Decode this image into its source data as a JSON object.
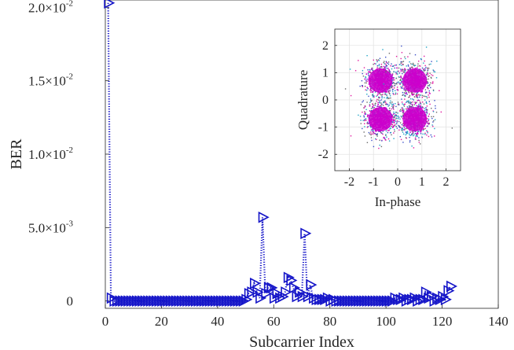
{
  "chart_data": [
    {
      "type": "line",
      "title": "",
      "xlabel": "Subcarrier Index",
      "ylabel": "BER",
      "xlim": [
        0,
        140
      ],
      "ylim": [
        -0.0005,
        0.0205
      ],
      "x_ticks": [
        0,
        20,
        40,
        60,
        80,
        100,
        120,
        140
      ],
      "x_tick_labels": [
        "0",
        "20",
        "40",
        "60",
        "80",
        "100",
        "120",
        "140"
      ],
      "y_ticks": [
        0,
        0.005,
        0.01,
        0.015,
        0.02
      ],
      "y_tick_mantissas": [
        "0",
        "5.0×10",
        "1.0×10",
        "1.5×10",
        "2.0×10"
      ],
      "y_tick_exponents": [
        "",
        "-3",
        "-2",
        "-2",
        "-2"
      ],
      "grid": false,
      "marker": "triangle-right",
      "line_style": "dotted",
      "color": "#1414c8",
      "series": [
        {
          "x": [
            1,
            2,
            3,
            4,
            5,
            6,
            7,
            8,
            9,
            10,
            11,
            12,
            13,
            14,
            15,
            16,
            17,
            18,
            19,
            20,
            21,
            22,
            23,
            24,
            25,
            26,
            27,
            28,
            29,
            30,
            31,
            32,
            33,
            34,
            35,
            36,
            37,
            38,
            39,
            40,
            41,
            42,
            43,
            44,
            45,
            46,
            47,
            48,
            49,
            50,
            51,
            52,
            53,
            54,
            55,
            56,
            57,
            58,
            59,
            60,
            61,
            62,
            63,
            64,
            65,
            66,
            67,
            68,
            69,
            70,
            71,
            72,
            73,
            74,
            75,
            76,
            77,
            78,
            79,
            80,
            81,
            82,
            83,
            84,
            85,
            86,
            87,
            88,
            89,
            90,
            91,
            92,
            93,
            94,
            95,
            96,
            97,
            98,
            99,
            100,
            101,
            102,
            103,
            104,
            105,
            106,
            107,
            108,
            109,
            110,
            111,
            112,
            113,
            114,
            115,
            116,
            117,
            118,
            119,
            120,
            121,
            122,
            123
          ],
          "y": [
            0.0203,
            0.0002,
            0,
            0,
            0,
            0,
            0,
            0,
            0,
            0,
            0,
            0,
            0,
            0,
            0,
            0,
            0,
            0,
            0,
            0,
            0,
            0,
            0,
            0,
            0,
            0,
            0,
            0,
            0,
            0,
            0,
            0,
            0,
            0,
            0,
            0,
            0,
            0,
            0,
            0,
            0,
            0,
            0,
            0,
            0,
            0,
            0,
            0,
            0,
            0.0001,
            0.0005,
            0.0006,
            0.0012,
            0.0006,
            0.0002,
            0.0057,
            0.0005,
            0.0009,
            0.0009,
            0.0002,
            0.0005,
            0.0002,
            0.0003,
            0.0006,
            0.0016,
            0.0014,
            0.0009,
            0.0003,
            0.0006,
            0.0003,
            0.0046,
            0.0003,
            0.0011,
            0.0002,
            0.0001,
            0.0001,
            0.0001,
            0.0001,
            0.0002,
            0,
            0.0001,
            0,
            0,
            0,
            0,
            0,
            0,
            0,
            0,
            0,
            0,
            0,
            0,
            0,
            0,
            0,
            0,
            0,
            0,
            0,
            0,
            0,
            0.0002,
            0.0001,
            0.0001,
            0.0002,
            0,
            0.0001,
            0.0001,
            0.0002,
            0,
            0.0001,
            0.0001,
            0.0006,
            0.0002,
            0.0003,
            0,
            0.0002,
            0.0001,
            0.0003,
            0.0001,
            0.0007,
            0.001
          ]
        }
      ]
    },
    {
      "type": "scatter",
      "title": "",
      "xlabel": "In-phase",
      "ylabel": "Quadrature",
      "xlim": [
        -2.6,
        2.6
      ],
      "ylim": [
        -2.6,
        2.6
      ],
      "x_ticks": [
        -2,
        -1,
        0,
        1,
        2
      ],
      "x_tick_labels": [
        "-2",
        "-1",
        "0",
        "1",
        "2"
      ],
      "y_ticks": [
        -2,
        -1,
        0,
        1,
        2
      ],
      "y_tick_labels": [
        "-2",
        "-1",
        "0",
        "1",
        "2"
      ],
      "grid": true,
      "legend": "none",
      "cluster_centers": [
        [
          -0.71,
          0.71
        ],
        [
          0.71,
          0.71
        ],
        [
          -0.71,
          -0.71
        ],
        [
          0.71,
          -0.71
        ]
      ],
      "point_colors": [
        "#cc00cc",
        "#e0149e",
        "#3a4ec8",
        "#1fa5c6",
        "#6a6a6a"
      ]
    }
  ]
}
